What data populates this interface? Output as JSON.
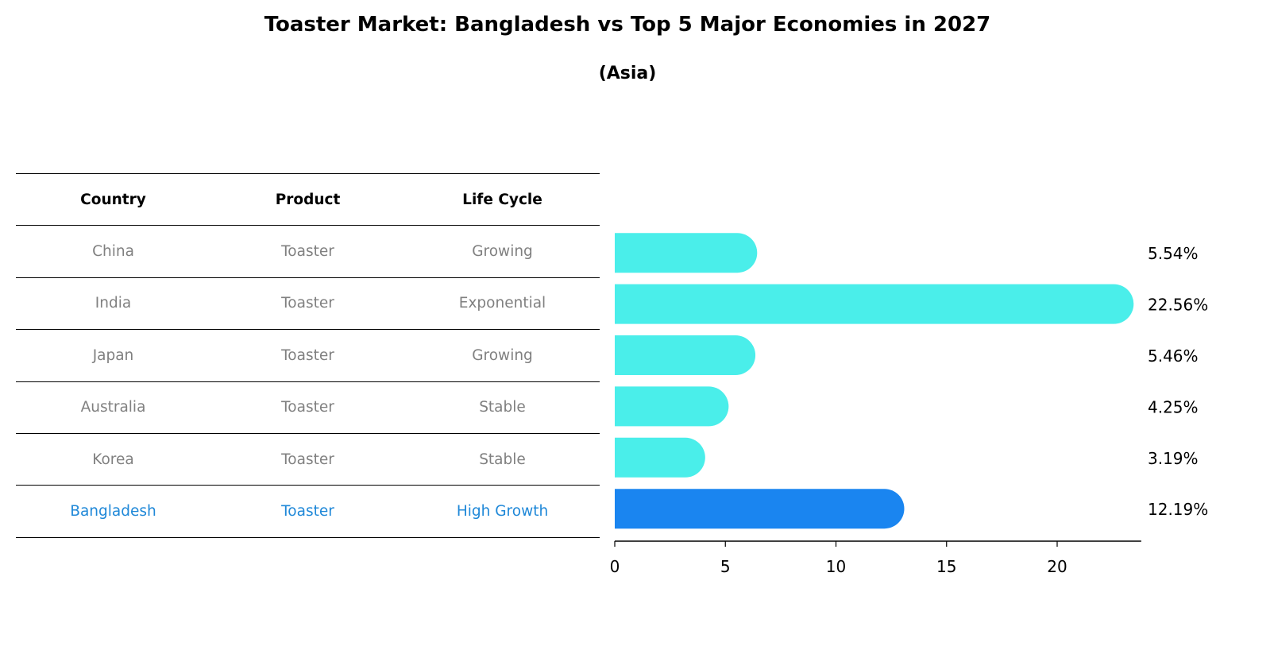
{
  "chart_data": {
    "type": "bar",
    "orientation": "horizontal",
    "title": "Toaster Market: Bangladesh vs Top 5 Major Economies in 2027",
    "subtitle": "(Asia)",
    "categories": [
      "China",
      "India",
      "Japan",
      "Australia",
      "Korea",
      "Bangladesh"
    ],
    "values": [
      5.54,
      22.56,
      5.46,
      4.25,
      3.19,
      12.19
    ],
    "value_labels": [
      "5.54%",
      "22.56%",
      "5.46%",
      "4.25%",
      "3.19%",
      "12.19%"
    ],
    "highlight": "Bangladesh",
    "xlim": [
      0,
      23.8
    ],
    "xticks": [
      0,
      5,
      10,
      15,
      20
    ],
    "xtick_labels": [
      "0",
      "5",
      "10",
      "15",
      "20"
    ],
    "colors": {
      "default": "#4aeeea",
      "highlight": "#1a85f0",
      "highlight_text": "#1f88d8",
      "muted_text": "#808080"
    },
    "table": {
      "headers": [
        "Country",
        "Product",
        "Life Cycle"
      ],
      "rows": [
        [
          "China",
          "Toaster",
          "Growing"
        ],
        [
          "India",
          "Toaster",
          "Exponential"
        ],
        [
          "Japan",
          "Toaster",
          "Growing"
        ],
        [
          "Australia",
          "Toaster",
          "Stable"
        ],
        [
          "Korea",
          "Toaster",
          "Stable"
        ],
        [
          "Bangladesh",
          "Toaster",
          "High Growth"
        ]
      ]
    }
  }
}
